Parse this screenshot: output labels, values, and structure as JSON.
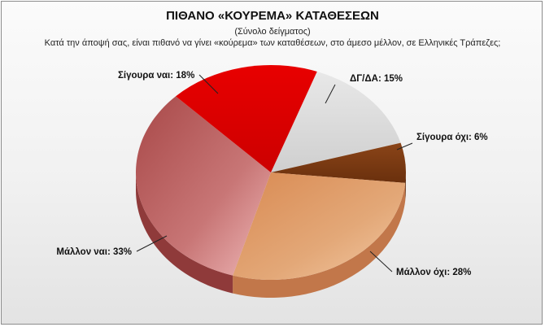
{
  "chart_data": {
    "type": "pie",
    "title": "ΠΙΘΑΝΟ «ΚΟΥΡΕΜΑ» ΚΑΤΑΘΕΣΕΩΝ",
    "subtitle": "(Σύνολο δείγματος)",
    "question": "Κατά την άποψή σας, είναι πιθανό να γίνει «κούρεμα» των καταθέσεων, στο άμεσο μέλλον, σε Ελληνικές Τράπεζες;",
    "slices": [
      {
        "label": "ΔΓ/ΔΑ",
        "value": 15,
        "label_text": "ΔΓ/ΔΑ: 15%",
        "color": "#dcdcdc"
      },
      {
        "label": "Σίγουρα όχι",
        "value": 6,
        "label_text": "Σίγουρα όχι: 6%",
        "color": "#7b3a12"
      },
      {
        "label": "Μάλλον όχι",
        "value": 28,
        "label_text": "Μάλλον όχι: 28%",
        "color": "#d48a54"
      },
      {
        "label": "Μάλλον ναι",
        "value": 33,
        "label_text": "Μάλλον ναι: 33%",
        "color": "#b05252"
      },
      {
        "label": "Σίγουρα ναι",
        "value": 18,
        "label_text": "Σίγουρα ναι: 18%",
        "color": "#e00000"
      }
    ]
  }
}
